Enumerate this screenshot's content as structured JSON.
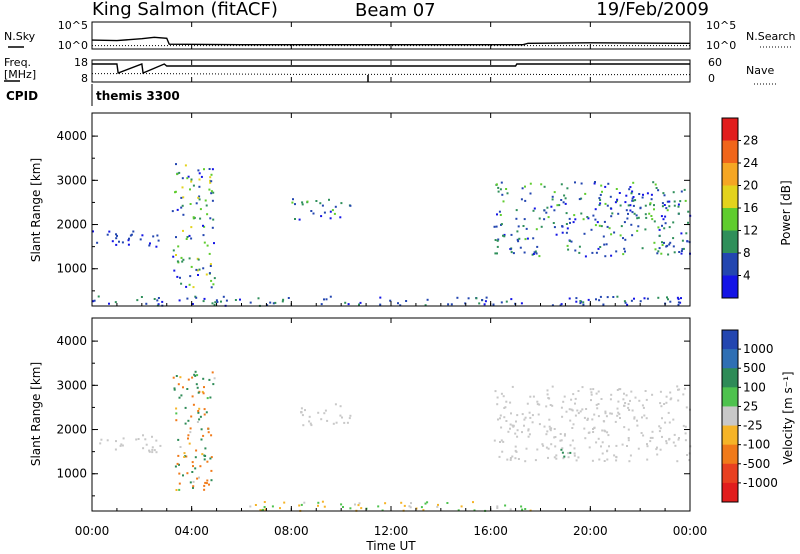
{
  "header": {
    "station": "King Salmon (fitACF)",
    "beam": "Beam 07",
    "date": "19/Feb/2009"
  },
  "noise_panel": {
    "left_label": "N.Sky",
    "right_label": "N.Search",
    "left_ticks": [
      "10^5",
      "10^0"
    ],
    "right_ticks": [
      "10^5",
      "10^0"
    ]
  },
  "freq_panel": {
    "left_label_1": "Freq.",
    "left_label_2": "[MHz]",
    "left_ticks": [
      "18",
      "8"
    ],
    "right_label": "Nave",
    "right_ticks": [
      "60",
      "0"
    ]
  },
  "cpid_panel": {
    "label": "CPID",
    "program": "themis 3300"
  },
  "power_panel": {
    "ylabel": "Slant Range [km]",
    "yticks": [
      "4000",
      "3000",
      "2000",
      "1000"
    ],
    "colorbar_label": "Power [dB]",
    "colorbar_ticks": [
      "28",
      "24",
      "20",
      "16",
      "12",
      "8",
      "4"
    ],
    "colorbar_colors": [
      "#e11d1d",
      "#f0651a",
      "#f5a623",
      "#e3d31c",
      "#5fcc2e",
      "#2f8f5a",
      "#2346b0",
      "#1414e6"
    ]
  },
  "velocity_panel": {
    "ylabel": "Slant Range [km]",
    "yticks": [
      "4000",
      "3000",
      "2000",
      "1000"
    ],
    "colorbar_label": "Velocity [m s⁻¹]",
    "colorbar_ticks": [
      "1000",
      "500",
      "100",
      "25",
      "-25",
      "-100",
      "-500",
      "-1000"
    ],
    "colorbar_colors": [
      "#2346b0",
      "#2f6fb4",
      "#2e8b57",
      "#4ec24e",
      "#c8c8c8",
      "#f5b428",
      "#f07a1a",
      "#e84020",
      "#e11d1d"
    ]
  },
  "xaxis": {
    "label": "Time UT",
    "ticks": [
      "00:00",
      "04:00",
      "08:00",
      "12:00",
      "16:00",
      "20:00",
      "00:00"
    ]
  },
  "chart_data": [
    {
      "type": "line",
      "title": "",
      "xlabel": "",
      "ylabel": "N.Sky / N.Search",
      "x_units": "hours UT",
      "xlim": [
        0,
        24
      ],
      "series": [
        {
          "name": "N.Sky",
          "x": [
            0,
            1,
            2,
            2.5,
            3,
            3.1,
            6,
            10,
            14,
            17.3,
            17.5,
            20,
            24
          ],
          "y": [
            1.5,
            1.4,
            1.8,
            2.1,
            1.9,
            0.6,
            0.5,
            0.5,
            0.5,
            0.5,
            0.8,
            0.9,
            0.8
          ]
        },
        {
          "name": "N.Search",
          "x": [
            0,
            3,
            6,
            10,
            14,
            17.5,
            20,
            24
          ],
          "y": [
            0.3,
            0.3,
            0.3,
            0.3,
            0.3,
            0.3,
            0.3,
            0.3
          ]
        }
      ]
    },
    {
      "type": "line",
      "title": "",
      "xlabel": "",
      "ylabel": "Freq. [MHz]",
      "x_units": "hours UT",
      "xlim": [
        0,
        24
      ],
      "ylim": [
        8,
        18
      ],
      "series": [
        {
          "name": "Freq.",
          "x": [
            0,
            1.0,
            1.05,
            2.0,
            2.05,
            2.9,
            3.0,
            17.0,
            17.05,
            24
          ],
          "y": [
            16.5,
            16.5,
            12,
            16.5,
            12,
            16.5,
            15.5,
            15.5,
            16.5,
            16.5
          ]
        },
        {
          "name": "Nave",
          "x": [
            0,
            3,
            8,
            12,
            16,
            17,
            20,
            24
          ],
          "y": [
            22,
            22,
            20,
            20,
            20,
            20,
            19,
            19
          ]
        }
      ]
    },
    {
      "type": "heatmap",
      "title": "",
      "xlabel": "Time UT",
      "ylabel": "Slant Range [km]",
      "xlim": [
        0,
        24
      ],
      "ylim": [
        180,
        4500
      ],
      "z_label": "Power [dB]",
      "features": [
        {
          "time_range": [
            0.0,
            2.8
          ],
          "range_km": [
            1500,
            1900
          ],
          "power_db": [
            4,
            8
          ]
        },
        {
          "time_range": [
            3.2,
            4.9
          ],
          "range_km": [
            600,
            3400
          ],
          "power_db": [
            4,
            20
          ]
        },
        {
          "time_range": [
            8.0,
            10.4
          ],
          "range_km": [
            2100,
            2600
          ],
          "power_db": [
            4,
            16
          ]
        },
        {
          "time_range": [
            16.1,
            24.0
          ],
          "range_km": [
            1300,
            3000
          ],
          "power_db": [
            4,
            16
          ]
        },
        {
          "time_range": [
            0.0,
            24.0
          ],
          "range_km": [
            180,
            400
          ],
          "power_db": [
            4,
            12
          ]
        }
      ]
    },
    {
      "type": "heatmap",
      "title": "",
      "xlabel": "Time UT",
      "ylabel": "Slant Range [km]",
      "xlim": [
        0,
        24
      ],
      "ylim": [
        180,
        4500
      ],
      "z_label": "Velocity [m s-1]",
      "features": [
        {
          "time_range": [
            0.0,
            2.8
          ],
          "range_km": [
            1500,
            1900
          ],
          "velocity": [
            -25,
            25
          ]
        },
        {
          "time_range": [
            3.2,
            4.9
          ],
          "range_km": [
            600,
            3400
          ],
          "velocity": [
            -500,
            500
          ]
        },
        {
          "time_range": [
            8.0,
            10.4
          ],
          "range_km": [
            2100,
            2600
          ],
          "velocity": [
            -25,
            25
          ]
        },
        {
          "time_range": [
            16.1,
            24.0
          ],
          "range_km": [
            1300,
            3000
          ],
          "velocity": [
            -25,
            25
          ]
        },
        {
          "time_range": [
            18.8,
            19.3
          ],
          "range_km": [
            1300,
            1700
          ],
          "velocity": [
            100,
            500
          ]
        },
        {
          "time_range": [
            6.0,
            18.0
          ],
          "range_km": [
            180,
            400
          ],
          "velocity": [
            -100,
            100
          ]
        }
      ]
    }
  ]
}
